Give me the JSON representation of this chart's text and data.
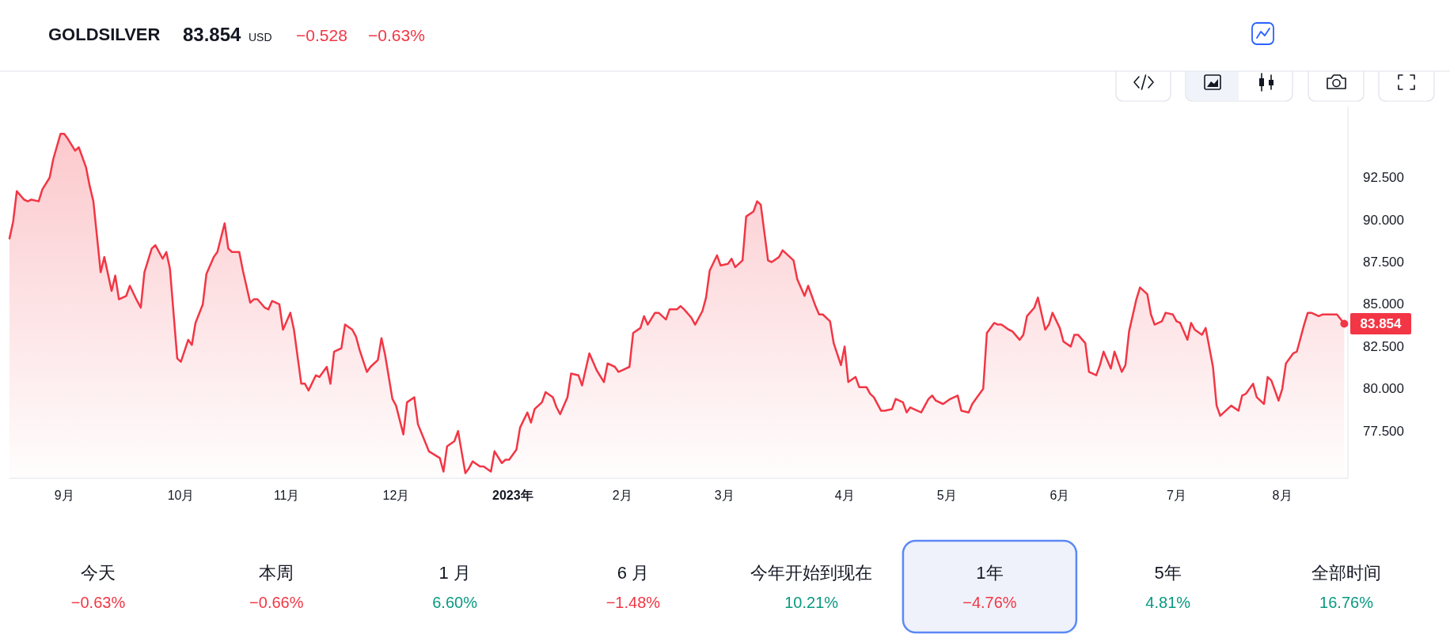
{
  "chart_data": [
    {
      "type": "area",
      "title": "GOLDSILVER",
      "annotations": [
        "83.854",
        "USD",
        "−0.528",
        "−0.63%",
        {
          "text": "83.854",
          "x": "2023-08-18",
          "y": 83.854
        }
      ],
      "x": [
        "2022-08-17",
        "2022-08-18",
        "2022-08-19",
        "2022-08-21",
        "2022-08-22",
        "2022-08-23",
        "2022-08-25",
        "2022-08-26",
        "2022-08-28",
        "2022-08-29",
        "2022-08-31",
        "2022-09-01",
        "2022-09-02",
        "2022-09-04",
        "2022-09-05",
        "2022-09-07",
        "2022-09-08",
        "2022-09-09",
        "2022-09-11",
        "2022-09-12",
        "2022-09-14",
        "2022-09-15",
        "2022-09-16",
        "2022-09-18",
        "2022-09-19",
        "2022-09-21",
        "2022-09-22",
        "2022-09-23",
        "2022-09-25",
        "2022-09-26",
        "2022-09-28",
        "2022-09-29",
        "2022-09-30",
        "2022-10-02",
        "2022-10-03",
        "2022-10-05",
        "2022-10-06",
        "2022-10-07",
        "2022-10-09",
        "2022-10-10",
        "2022-10-12",
        "2022-10-13",
        "2022-10-15",
        "2022-10-16",
        "2022-10-17",
        "2022-10-19",
        "2022-10-20",
        "2022-10-22",
        "2022-10-23",
        "2022-10-24",
        "2022-10-26",
        "2022-10-27",
        "2022-10-28",
        "2022-10-30",
        "2022-10-31",
        "2022-11-02",
        "2022-11-03",
        "2022-11-05",
        "2022-11-06",
        "2022-11-07",
        "2022-11-09",
        "2022-11-10",
        "2022-11-12",
        "2022-11-13",
        "2022-11-14",
        "2022-11-16",
        "2022-11-17",
        "2022-11-19",
        "2022-11-20",
        "2022-11-21",
        "2022-11-23",
        "2022-11-24",
        "2022-11-26",
        "2022-11-27",
        "2022-11-28",
        "2022-11-30",
        "2022-12-01",
        "2022-12-03",
        "2022-12-04",
        "2022-12-06",
        "2022-12-07",
        "2022-12-10",
        "2022-12-13",
        "2022-12-14",
        "2022-12-15",
        "2022-12-17",
        "2022-12-18",
        "2022-12-20",
        "2022-12-21",
        "2022-12-22",
        "2022-12-24",
        "2022-12-25",
        "2022-12-27",
        "2022-12-28",
        "2022-12-30",
        "2022-12-31",
        "2023-01-01",
        "2023-01-03",
        "2023-01-04",
        "2023-01-06",
        "2023-01-07",
        "2023-01-08",
        "2023-01-10",
        "2023-01-11",
        "2023-01-13",
        "2023-01-14",
        "2023-01-15",
        "2023-01-17",
        "2023-01-18",
        "2023-01-20",
        "2023-01-21",
        "2023-01-23",
        "2023-01-24",
        "2023-01-25",
        "2023-01-27",
        "2023-01-28",
        "2023-01-30",
        "2023-01-31",
        "2023-02-01",
        "2023-02-03",
        "2023-02-04",
        "2023-02-06",
        "2023-02-07",
        "2023-02-08",
        "2023-02-10",
        "2023-02-11",
        "2023-02-13",
        "2023-02-14",
        "2023-02-16",
        "2023-02-17",
        "2023-02-18",
        "2023-02-20",
        "2023-02-21",
        "2023-02-23",
        "2023-02-24",
        "2023-02-25",
        "2023-02-27",
        "2023-02-28",
        "2023-03-02",
        "2023-03-03",
        "2023-03-04",
        "2023-03-06",
        "2023-03-07",
        "2023-03-09",
        "2023-03-10",
        "2023-03-11",
        "2023-03-13",
        "2023-03-14",
        "2023-03-16",
        "2023-03-17",
        "2023-03-19",
        "2023-03-20",
        "2023-03-21",
        "2023-03-23",
        "2023-03-24",
        "2023-03-26",
        "2023-03-27",
        "2023-03-28",
        "2023-03-30",
        "2023-03-31",
        "2023-04-02",
        "2023-04-03",
        "2023-04-04",
        "2023-04-06",
        "2023-04-07",
        "2023-04-09",
        "2023-04-10",
        "2023-04-11",
        "2023-04-13",
        "2023-04-14",
        "2023-04-16",
        "2023-04-17",
        "2023-04-19",
        "2023-04-20",
        "2023-04-21",
        "2023-04-23",
        "2023-04-24",
        "2023-04-26",
        "2023-04-27",
        "2023-04-28",
        "2023-04-30",
        "2023-05-02",
        "2023-05-04",
        "2023-05-05",
        "2023-05-07",
        "2023-05-08",
        "2023-05-09",
        "2023-05-11",
        "2023-05-12",
        "2023-05-14",
        "2023-05-15",
        "2023-05-16",
        "2023-05-18",
        "2023-05-19",
        "2023-05-21",
        "2023-05-22",
        "2023-05-23",
        "2023-05-25",
        "2023-05-26",
        "2023-05-28",
        "2023-05-29",
        "2023-05-30",
        "2023-06-01",
        "2023-06-02",
        "2023-06-04",
        "2023-06-05",
        "2023-06-06",
        "2023-06-08",
        "2023-06-09",
        "2023-06-11",
        "2023-06-12",
        "2023-06-13",
        "2023-06-15",
        "2023-06-16",
        "2023-06-18",
        "2023-06-19",
        "2023-06-20",
        "2023-06-22",
        "2023-06-23",
        "2023-06-25",
        "2023-06-26",
        "2023-06-27",
        "2023-06-29",
        "2023-06-30",
        "2023-07-02",
        "2023-07-03",
        "2023-07-04",
        "2023-07-06",
        "2023-07-07",
        "2023-07-08",
        "2023-07-10",
        "2023-07-11",
        "2023-07-13",
        "2023-07-14",
        "2023-07-15",
        "2023-07-17",
        "2023-07-18",
        "2023-07-20",
        "2023-07-21",
        "2023-07-22",
        "2023-07-24",
        "2023-07-25",
        "2023-07-27",
        "2023-07-28",
        "2023-07-29",
        "2023-07-31",
        "2023-08-01",
        "2023-08-02",
        "2023-08-04",
        "2023-08-05",
        "2023-08-07",
        "2023-08-08",
        "2023-08-09",
        "2023-08-11",
        "2023-08-12",
        "2023-08-14",
        "2023-08-15",
        "2023-08-16",
        "2023-08-18"
      ],
      "series": [
        {
          "color": "#f23645",
          "values": [
            88.9,
            89.9,
            91.7,
            91.2,
            91.1,
            91.2,
            91.1,
            91.8,
            92.5,
            93.6,
            95.1,
            95.1,
            94.8,
            94.1,
            94.3,
            93.1,
            92.0,
            91.1,
            86.9,
            87.8,
            85.8,
            86.7,
            85.3,
            85.5,
            86.1,
            85.2,
            84.8,
            86.9,
            88.3,
            88.5,
            87.7,
            88.1,
            87.1,
            81.8,
            81.6,
            82.9,
            82.6,
            83.9,
            85.0,
            86.8,
            87.8,
            88.1,
            89.8,
            88.3,
            88.1,
            88.1,
            87.0,
            85.1,
            85.3,
            85.3,
            84.8,
            84.7,
            85.2,
            85.0,
            83.5,
            84.5,
            83.5,
            80.3,
            80.3,
            79.9,
            80.8,
            80.7,
            81.3,
            80.3,
            82.2,
            82.4,
            83.8,
            83.5,
            83.1,
            82.3,
            81.0,
            81.3,
            81.7,
            83.0,
            82.0,
            79.4,
            79.0,
            77.3,
            79.2,
            79.5,
            77.9,
            76.3,
            75.9,
            75.1,
            76.6,
            76.9,
            77.5,
            75.0,
            75.3,
            75.7,
            75.4,
            75.4,
            75.1,
            76.3,
            75.6,
            75.8,
            75.8,
            76.4,
            77.7,
            78.6,
            78.0,
            78.8,
            79.2,
            79.8,
            79.5,
            78.9,
            78.5,
            79.5,
            80.9,
            80.8,
            80.2,
            82.1,
            81.6,
            81.1,
            80.4,
            81.5,
            81.3,
            81.0,
            81.1,
            81.3,
            83.3,
            83.6,
            84.3,
            83.8,
            84.5,
            84.5,
            84.1,
            84.7,
            84.7,
            84.9,
            84.7,
            84.2,
            83.8,
            84.6,
            85.4,
            87.0,
            87.9,
            87.3,
            87.4,
            87.7,
            87.2,
            87.6,
            90.2,
            90.5,
            91.1,
            90.9,
            87.6,
            87.5,
            87.8,
            88.2,
            87.8,
            87.6,
            86.5,
            85.5,
            86.1,
            84.9,
            84.4,
            84.4,
            84.0,
            82.7,
            81.4,
            82.5,
            80.4,
            80.7,
            80.1,
            80.1,
            79.7,
            79.5,
            78.7,
            78.7,
            78.8,
            79.4,
            79.2,
            78.6,
            78.9,
            78.7,
            78.6,
            79.4,
            79.6,
            79.3,
            79.1,
            79.4,
            79.6,
            78.7,
            78.6,
            79.1,
            79.4,
            80.0,
            83.3,
            83.9,
            83.8,
            83.8,
            83.5,
            83.4,
            82.9,
            83.2,
            84.3,
            84.8,
            85.4,
            83.5,
            83.8,
            84.5,
            83.6,
            82.8,
            82.5,
            83.2,
            83.2,
            82.7,
            81.0,
            80.8,
            81.4,
            82.2,
            81.2,
            82.2,
            81.0,
            81.4,
            83.4,
            85.3,
            86.0,
            85.6,
            84.4,
            83.8,
            84.0,
            84.5,
            84.4,
            84.0,
            83.9,
            82.9,
            83.9,
            83.5,
            83.2,
            83.6,
            81.3,
            79.0,
            78.4,
            78.8,
            79.0,
            78.7,
            79.6,
            79.7,
            80.3,
            79.5,
            79.1,
            80.7,
            80.5,
            79.3,
            80.0,
            81.5,
            82.1,
            82.2,
            83.8,
            84.5,
            84.5,
            84.3,
            84.4,
            84.4,
            84.4,
            84.4,
            83.854
          ]
        }
      ],
      "xlim": [
        "2022-08-17",
        "2023-08-19"
      ],
      "xticks": [
        {
          "value": "2022-09-01",
          "label": "9月"
        },
        {
          "value": "2022-10-03",
          "label": "10月"
        },
        {
          "value": "2022-11-01",
          "label": "11月"
        },
        {
          "value": "2022-12-01",
          "label": "12月"
        },
        {
          "value": "2023-01-02",
          "label": "2023年"
        },
        {
          "value": "2023-02-01",
          "label": "2月"
        },
        {
          "value": "2023-03-01",
          "label": "3月"
        },
        {
          "value": "2023-04-03",
          "label": "4月"
        },
        {
          "value": "2023-05-01",
          "label": "5月"
        },
        {
          "value": "2023-06-01",
          "label": "6月"
        },
        {
          "value": "2023-07-03",
          "label": "7月"
        },
        {
          "value": "2023-08-01",
          "label": "8月"
        }
      ],
      "ylim": [
        74.7,
        96.7
      ],
      "yticks": [
        {
          "value": 77.5,
          "label": "77.500"
        },
        {
          "value": 80,
          "label": "80.000"
        },
        {
          "value": 82.5,
          "label": "82.500"
        },
        {
          "value": 85,
          "label": "85.000"
        },
        {
          "value": 87.5,
          "label": "87.500"
        },
        {
          "value": 90,
          "label": "90.000"
        },
        {
          "value": 92.5,
          "label": "92.500"
        }
      ]
    },
    {
      "type": "other",
      "categories": [
        "今天",
        "本周",
        "1 月",
        "6 月",
        "今年开始到现在",
        "1年",
        "5年",
        "全部时间"
      ],
      "value_labels": [
        "−0.63%",
        "−0.66%",
        "6.60%",
        "−1.48%",
        "10.21%",
        "−4.76%",
        "4.81%",
        "16.76%"
      ],
      "colors": [
        "#f23645",
        "#f23645",
        "#089981",
        "#f23645",
        "#089981",
        "#f23645",
        "#089981",
        "#089981"
      ]
    }
  ]
}
